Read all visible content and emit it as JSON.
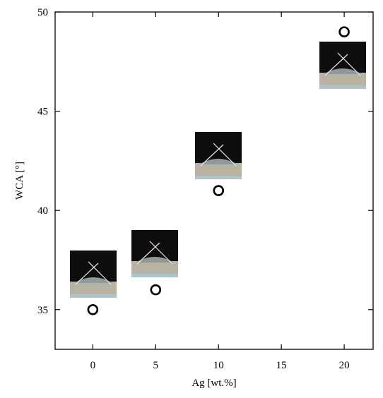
{
  "chart_data": {
    "type": "scatter",
    "x_label": "Ag [wt.%]",
    "y_label": "WCA [°]",
    "x": [
      0,
      5,
      10,
      20
    ],
    "values": [
      35,
      36,
      41,
      49
    ],
    "color": "#000000",
    "xlim": [
      -3,
      22.3
    ],
    "ylim": [
      33,
      50
    ],
    "xticks": [
      0,
      5,
      10,
      15,
      20
    ],
    "yticks": [
      35,
      40,
      45,
      50
    ]
  }
}
